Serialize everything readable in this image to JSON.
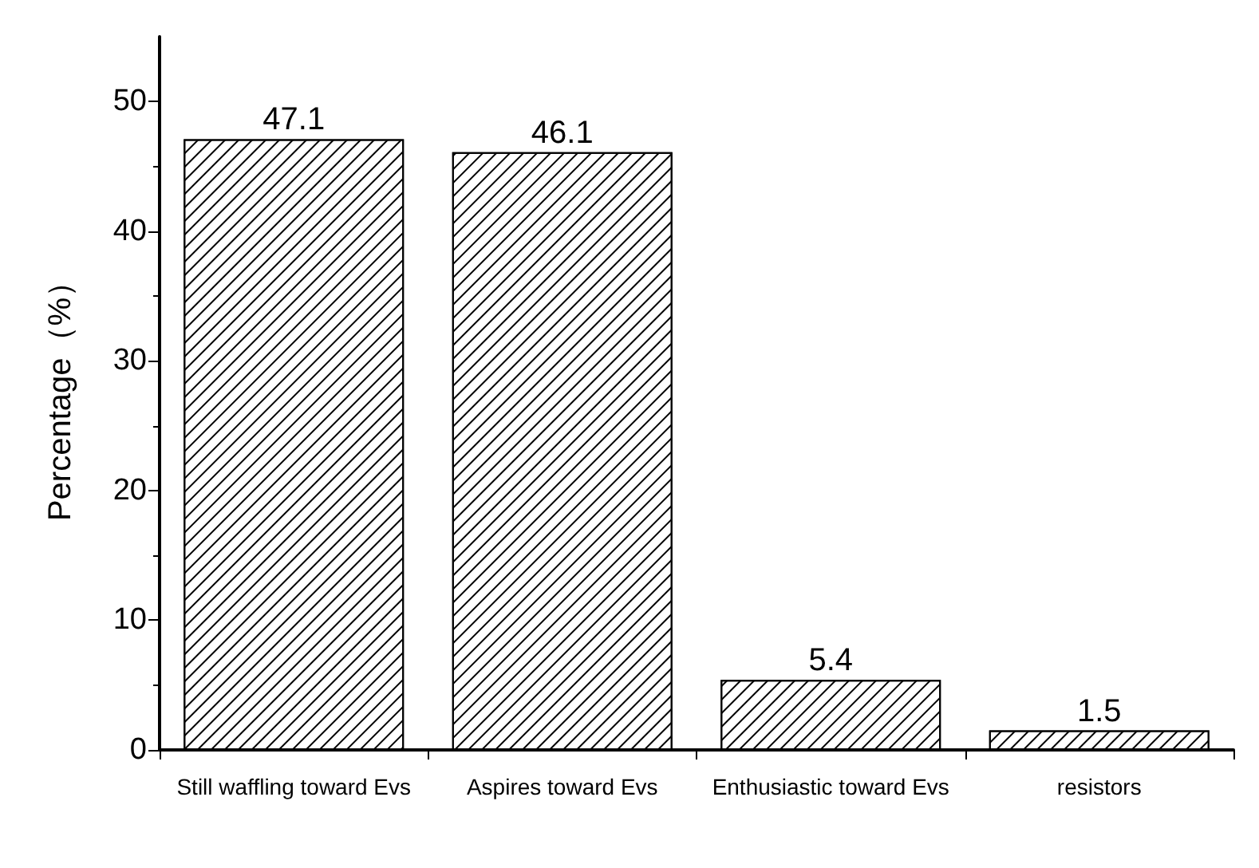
{
  "chart_data": {
    "type": "bar",
    "ylabel": "Percentage（%）",
    "categories": [
      "Still waffling toward Evs",
      "Aspires toward Evs",
      "Enthusiastic toward Evs",
      "resistors"
    ],
    "values": [
      47.1,
      46.1,
      5.4,
      1.5
    ],
    "color": "#ffffff",
    "ylim": [
      0,
      55
    ],
    "yticks": [
      0,
      10,
      20,
      30,
      40,
      50
    ],
    "grid": false,
    "data_labels": true
  }
}
